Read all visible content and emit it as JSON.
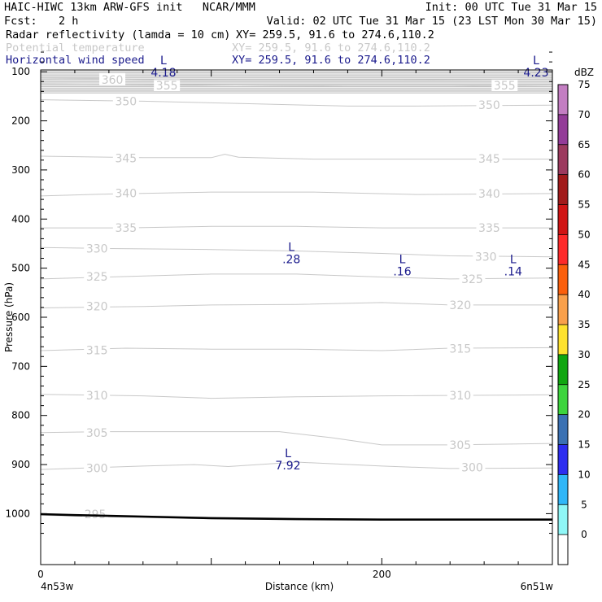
{
  "header": {
    "title": "HAIC-HIWC 13km ARW-GFS init   NCAR/MMM",
    "init": "Init: 00 UTC Tue 31 Mar 15",
    "fcst_label": "Fcst:",
    "fcst_value": "2 h",
    "valid": "Valid: 02 UTC Tue 31 Mar 15 (23 LST Mon 30 Mar 15)",
    "fields": [
      {
        "name": "Radar reflectivity (lamda = 10 cm)",
        "xy": "XY= 259.5, 91.6 to 274.6,110.2",
        "color": "#000000"
      },
      {
        "name": "Potential temperature",
        "xy": "XY= 259.5, 91.6 to 274.6,110.2",
        "color": "#c8c8c8"
      },
      {
        "name": "Horizontal wind speed",
        "xy": "XY= 259.5, 91.6 to 274.6,110.2",
        "color": "#1a1a8c"
      }
    ]
  },
  "chart_data": {
    "type": "contour-cross-section",
    "xlabel": "Distance (km)",
    "ylabel": "Pressure (hPa)",
    "xlim": [
      0,
      300
    ],
    "ylim": [
      1050,
      50
    ],
    "xticks": [
      0,
      200
    ],
    "yticks": [
      100,
      200,
      300,
      400,
      500,
      600,
      700,
      800,
      900,
      1000
    ],
    "x_endpoint_labels": {
      "left": "4n53w",
      "right": "6n51w"
    },
    "theta_contours": [
      {
        "label": "295",
        "color": "#c8c8c8",
        "points": [
          [
            0,
            1003
          ],
          [
            20,
            1005
          ],
          [
            90,
            1010
          ],
          [
            150,
            1012
          ],
          [
            300,
            1012
          ]
        ],
        "label_at": [
          [
            32,
            1001
          ]
        ]
      },
      {
        "label": "300",
        "color": "#c8c8c8",
        "points": [
          [
            0,
            910
          ],
          [
            60,
            903
          ],
          [
            90,
            900
          ],
          [
            110,
            904
          ],
          [
            150,
            895
          ],
          [
            200,
            903
          ],
          [
            240,
            908
          ],
          [
            300,
            907
          ]
        ],
        "label_at": [
          [
            33,
            907
          ],
          [
            253,
            906
          ]
        ]
      },
      {
        "label": "305",
        "color": "#c8c8c8",
        "points": [
          [
            0,
            835
          ],
          [
            40,
            833
          ],
          [
            100,
            833
          ],
          [
            140,
            833
          ],
          [
            170,
            845
          ],
          [
            200,
            860
          ],
          [
            240,
            860
          ],
          [
            300,
            857
          ]
        ],
        "label_at": [
          [
            33,
            835
          ],
          [
            246,
            860
          ]
        ]
      },
      {
        "label": "310",
        "color": "#c8c8c8",
        "points": [
          [
            0,
            757
          ],
          [
            60,
            760
          ],
          [
            100,
            765
          ],
          [
            150,
            762
          ],
          [
            200,
            760
          ],
          [
            300,
            758
          ]
        ],
        "label_at": [
          [
            33,
            759
          ],
          [
            246,
            759
          ]
        ]
      },
      {
        "label": "315",
        "color": "#c8c8c8",
        "points": [
          [
            0,
            668
          ],
          [
            50,
            663
          ],
          [
            100,
            665
          ],
          [
            150,
            665
          ],
          [
            200,
            668
          ],
          [
            240,
            663
          ],
          [
            300,
            662
          ]
        ],
        "label_at": [
          [
            33,
            667
          ],
          [
            246,
            664
          ]
        ]
      },
      {
        "label": "320",
        "color": "#c8c8c8",
        "points": [
          [
            0,
            581
          ],
          [
            60,
            578
          ],
          [
            100,
            575
          ],
          [
            150,
            574
          ],
          [
            200,
            570
          ],
          [
            240,
            575
          ],
          [
            300,
            575
          ]
        ],
        "label_at": [
          [
            33,
            578
          ],
          [
            246,
            575
          ]
        ]
      },
      {
        "label": "325",
        "color": "#c8c8c8",
        "points": [
          [
            0,
            522
          ],
          [
            40,
            518
          ],
          [
            100,
            512
          ],
          [
            150,
            512
          ],
          [
            200,
            518
          ],
          [
            240,
            522
          ],
          [
            300,
            520
          ]
        ],
        "label_at": [
          [
            33,
            517
          ],
          [
            253,
            522
          ]
        ]
      },
      {
        "label": "330",
        "color": "#c8c8c8",
        "points": [
          [
            0,
            458
          ],
          [
            40,
            460
          ],
          [
            100,
            462
          ],
          [
            150,
            465
          ],
          [
            200,
            470
          ],
          [
            240,
            475
          ],
          [
            300,
            477
          ]
        ],
        "label_at": [
          [
            33,
            460
          ],
          [
            261,
            477
          ]
        ]
      },
      {
        "label": "335",
        "color": "#c8c8c8",
        "points": [
          [
            0,
            418
          ],
          [
            50,
            418
          ],
          [
            100,
            415
          ],
          [
            150,
            415
          ],
          [
            200,
            418
          ],
          [
            300,
            418
          ]
        ],
        "label_at": [
          [
            50,
            418
          ],
          [
            263,
            418
          ]
        ]
      },
      {
        "label": "340",
        "color": "#c8c8c8",
        "points": [
          [
            0,
            353
          ],
          [
            40,
            349
          ],
          [
            100,
            345
          ],
          [
            160,
            345
          ],
          [
            220,
            350
          ],
          [
            300,
            348
          ]
        ],
        "label_at": [
          [
            50,
            347
          ],
          [
            263,
            348
          ]
        ]
      },
      {
        "label": "345",
        "color": "#c8c8c8",
        "points": [
          [
            0,
            272
          ],
          [
            60,
            275
          ],
          [
            100,
            275
          ],
          [
            108,
            268
          ],
          [
            116,
            274
          ],
          [
            160,
            278
          ],
          [
            200,
            278
          ],
          [
            300,
            278
          ]
        ],
        "label_at": [
          [
            50,
            276
          ],
          [
            263,
            277
          ]
        ]
      },
      {
        "label": "350",
        "color": "#c8c8c8",
        "points": [
          [
            0,
            157
          ],
          [
            60,
            160
          ],
          [
            120,
            165
          ],
          [
            180,
            170
          ],
          [
            220,
            170
          ],
          [
            300,
            168
          ]
        ],
        "label_at": [
          [
            50,
            160
          ],
          [
            263,
            168
          ]
        ]
      },
      {
        "label": "355",
        "color": "#c8c8c8",
        "points": [
          [
            0,
            125
          ],
          [
            60,
            126
          ],
          [
            120,
            128
          ],
          [
            180,
            130
          ],
          [
            240,
            130
          ],
          [
            300,
            128
          ]
        ],
        "label_at": [
          [
            74,
            128
          ],
          [
            272,
            128
          ]
        ]
      },
      {
        "label": "360",
        "color": "#c8c8c8",
        "points": [
          [
            0,
            115
          ],
          [
            30,
            114
          ],
          [
            60,
            116
          ],
          [
            120,
            117
          ],
          [
            200,
            117
          ],
          [
            300,
            115
          ]
        ],
        "label_at": [
          [
            42,
            116
          ]
        ]
      }
    ],
    "wind_minima": [
      {
        "marker": "L",
        "value": "4.18",
        "x": 72,
        "p": 85
      },
      {
        "marker": "L",
        "value": "4.23",
        "x": 300,
        "p": 85
      },
      {
        "marker": "L",
        "value": ".28",
        "x": 147,
        "p": 465
      },
      {
        "marker": "L",
        "value": ".16",
        "x": 212,
        "p": 490
      },
      {
        "marker": "L",
        "value": ".14",
        "x": 277,
        "p": 490
      },
      {
        "marker": "L",
        "value": "7.92",
        "x": 145,
        "p": 885
      }
    ],
    "terrain_pressure": [
      [
        0,
        1001
      ],
      [
        20,
        1003
      ],
      [
        60,
        1006
      ],
      [
        100,
        1009
      ],
      [
        150,
        1011
      ],
      [
        200,
        1012
      ],
      [
        300,
        1012
      ]
    ],
    "colorbar": {
      "unit": "dBZ",
      "levels": [
        -5,
        0,
        5,
        10,
        15,
        20,
        25,
        30,
        35,
        40,
        45,
        50,
        55,
        60,
        65,
        70,
        75
      ],
      "labels": [
        "0",
        "5",
        "10",
        "15",
        "20",
        "25",
        "30",
        "35",
        "40",
        "45",
        "50",
        "55",
        "60",
        "65",
        "70",
        "75"
      ],
      "colors": [
        "#ffffff",
        "#8ff7f7",
        "#30b6f8",
        "#2d2df0",
        "#3b71b3",
        "#3dd43d",
        "#10a610",
        "#fee22e",
        "#f9a04b",
        "#fb5f0c",
        "#fe2a2a",
        "#d01414",
        "#a11a1a",
        "#9c3a5e",
        "#933c98",
        "#c37ec2"
      ]
    }
  }
}
